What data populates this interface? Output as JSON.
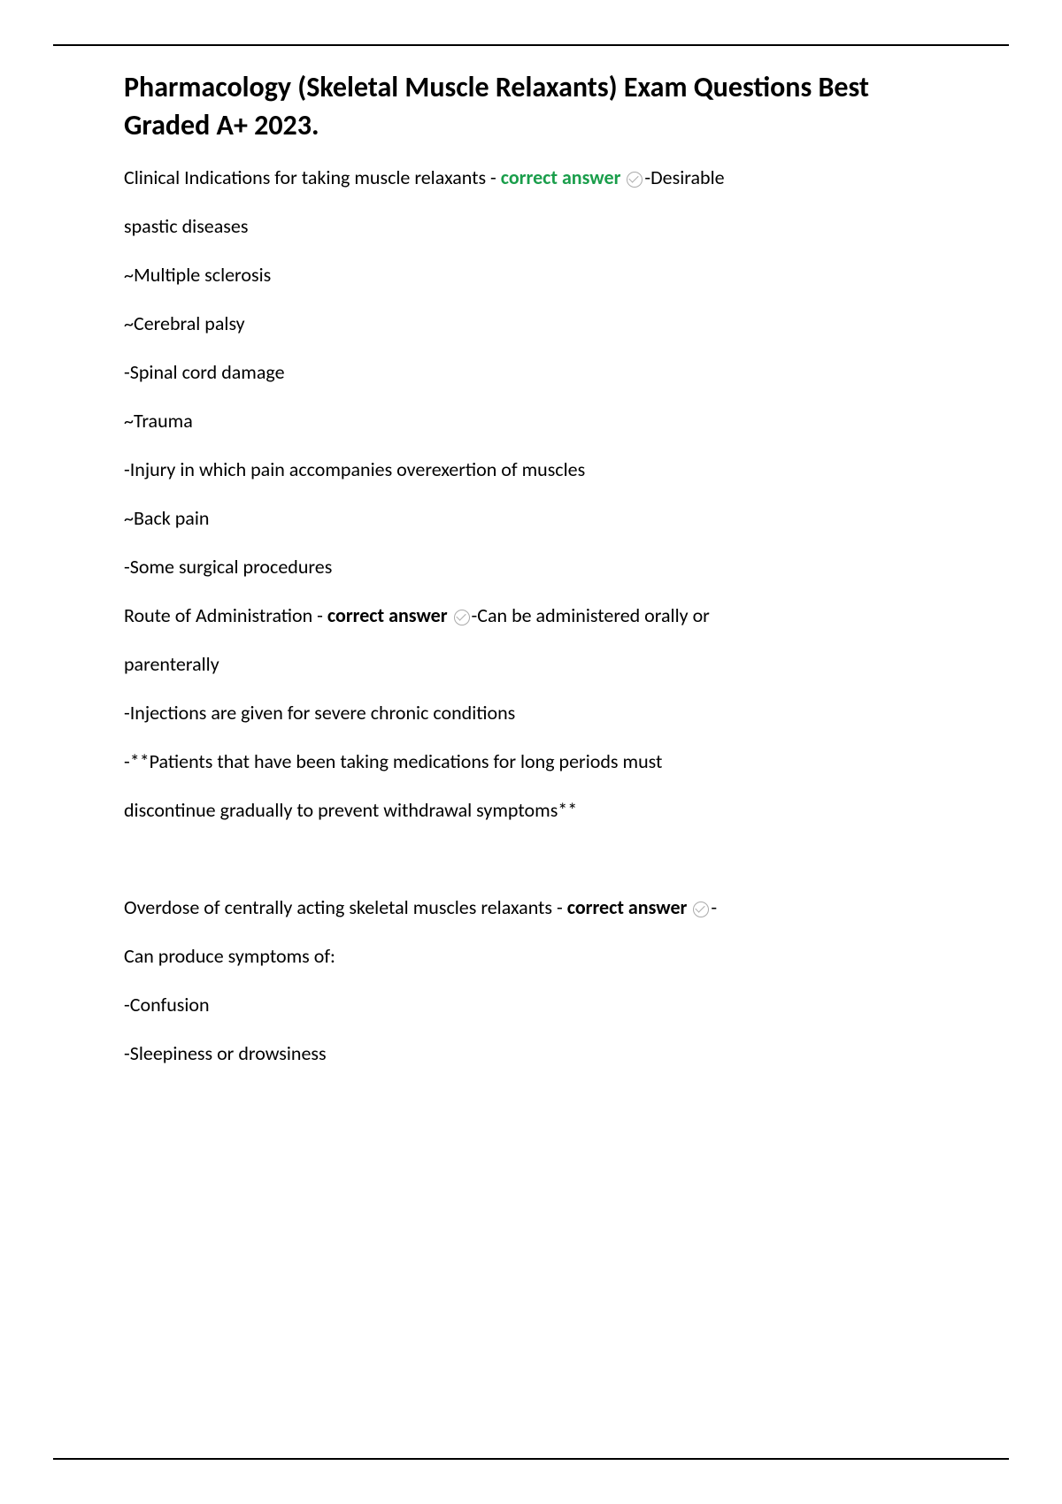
{
  "title": "Pharmacology (Skeletal Muscle Relaxants) Exam Questions Best Graded A+ 2023.",
  "q1": {
    "prompt": "Clinical Indications for taking muscle relaxants - ",
    "label": "correct answer ",
    "answer_start": "-Desirable",
    "lines": [
      "spastic diseases",
      " ~Multiple sclerosis",
      " ~Cerebral palsy",
      "-Spinal cord damage",
      " ~Trauma",
      "-Injury in which pain accompanies overexertion of muscles",
      " ~Back pain",
      "-Some surgical procedures"
    ]
  },
  "q2": {
    "prompt": "Route of Administration - ",
    "label": "correct answer ",
    "answer_start": "-Can be administered orally or",
    "lines": [
      "parenterally",
      "-Injections are given for severe chronic conditions",
      "-**Patients that have been taking medications for long periods must",
      "discontinue gradually to prevent withdrawal symptoms**"
    ]
  },
  "q3": {
    "prompt": "Overdose of centrally acting skeletal muscles relaxants - ",
    "label": "correct answer ",
    "answer_start": "-",
    "lines": [
      "Can produce symptoms of:",
      " -Confusion",
      " -Sleepiness or drowsiness"
    ]
  },
  "colors": {
    "text": "#000000",
    "correct_green": "#1a9e4b",
    "icon_gray": "#aaaaaa",
    "background": "#ffffff",
    "border": "#000000"
  },
  "typography": {
    "title_fontsize": 32,
    "title_weight": 700,
    "body_fontsize": 22,
    "body_weight": 400,
    "bold_weight": 700
  }
}
